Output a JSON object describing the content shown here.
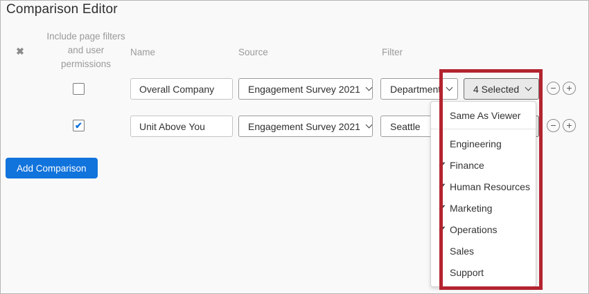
{
  "title": "Comparison Editor",
  "colors": {
    "accent_blue": "#1173dc",
    "annotation_red": "#b32430",
    "selected_btn_bg": "#e9e9e9"
  },
  "icons": {
    "remove_x": "✖",
    "checkbox_check": "✔",
    "menu_check": "✔",
    "minus": "−",
    "plus": "+"
  },
  "table": {
    "headers": {
      "include": "Include page filters and user permissions",
      "name": "Name",
      "source": "Source",
      "filter": "Filter"
    },
    "rows": [
      {
        "include_checked": false,
        "name": "Overall Company",
        "source": "Engagement Survey 2021",
        "filter": "Department",
        "selected_count": "4 Selected"
      },
      {
        "include_checked": true,
        "name": "Unit Above You",
        "source": "Engagement Survey 2021",
        "filter": "Seattle",
        "selected_count": ""
      }
    ]
  },
  "add_button_label": "Add Comparison",
  "dropdown_menu": {
    "items": [
      {
        "label": "Same As Viewer",
        "checked": false,
        "divider_after": true
      },
      {
        "label": "Engineering",
        "checked": false
      },
      {
        "label": "Finance",
        "checked": true
      },
      {
        "label": "Human Resources",
        "checked": true
      },
      {
        "label": "Marketing",
        "checked": true
      },
      {
        "label": "Operations",
        "checked": true
      },
      {
        "label": "Sales",
        "checked": false
      },
      {
        "label": "Support",
        "checked": false
      }
    ]
  }
}
